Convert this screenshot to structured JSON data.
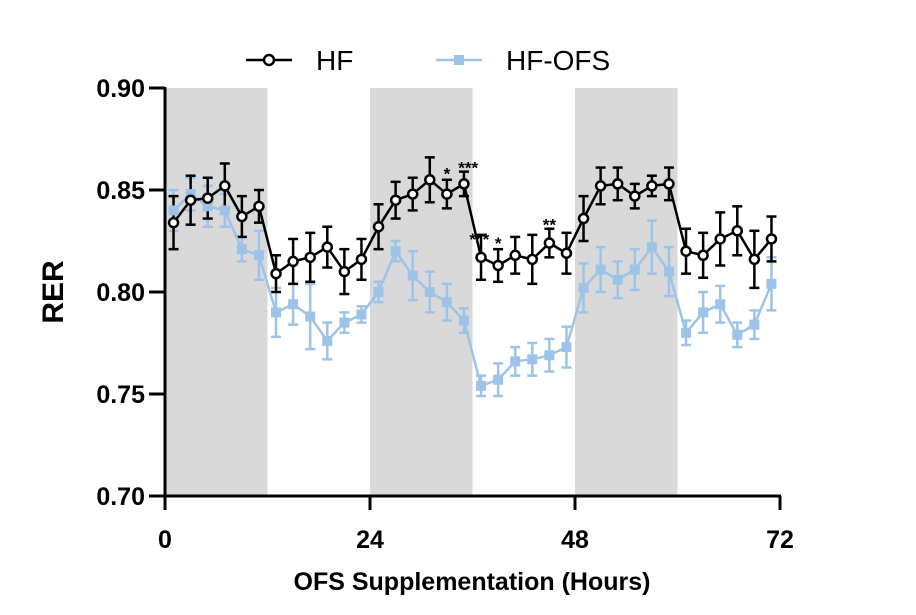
{
  "chart_data": {
    "type": "line",
    "title": "",
    "xlabel": "OFS Supplementation (Hours)",
    "ylabel": "RER",
    "xlim": [
      0,
      72
    ],
    "ylim": [
      0.7,
      0.9
    ],
    "x_ticks": [
      0,
      24,
      48,
      72
    ],
    "y_ticks": [
      0.7,
      0.75,
      0.8,
      0.85,
      0.9
    ],
    "x_tick_labels": [
      "0",
      "24",
      "48",
      "72"
    ],
    "y_tick_labels": [
      "0.70",
      "0.75",
      "0.80",
      "0.85",
      "0.90"
    ],
    "legend_position": "top-center",
    "dark_periods": [
      [
        0,
        12
      ],
      [
        24,
        36
      ],
      [
        48,
        60
      ]
    ],
    "colors": {
      "HF": "#000000",
      "HF-OFS": "#9ec3e8",
      "dark_shading": "#d9d9d9"
    },
    "x": [
      1,
      3,
      5,
      7,
      9,
      11,
      13,
      15,
      17,
      19,
      21,
      23,
      25,
      27,
      29,
      31,
      33,
      35,
      37,
      39,
      41,
      43,
      45,
      47,
      49,
      51,
      53,
      55,
      57,
      59,
      61,
      63,
      65,
      67,
      69,
      71
    ],
    "series": [
      {
        "name": "HF",
        "marker": "open-circle",
        "values": [
          0.834,
          0.845,
          0.846,
          0.852,
          0.837,
          0.842,
          0.809,
          0.815,
          0.817,
          0.822,
          0.81,
          0.816,
          0.832,
          0.845,
          0.848,
          0.855,
          0.848,
          0.853,
          0.817,
          0.813,
          0.818,
          0.816,
          0.824,
          0.819,
          0.836,
          0.852,
          0.853,
          0.847,
          0.852,
          0.853,
          0.82,
          0.818,
          0.826,
          0.83,
          0.816,
          0.826
        ],
        "errors": [
          0.013,
          0.012,
          0.01,
          0.011,
          0.01,
          0.008,
          0.009,
          0.011,
          0.012,
          0.01,
          0.011,
          0.01,
          0.011,
          0.009,
          0.008,
          0.011,
          0.007,
          0.006,
          0.011,
          0.008,
          0.009,
          0.012,
          0.007,
          0.01,
          0.011,
          0.009,
          0.008,
          0.006,
          0.005,
          0.008,
          0.011,
          0.011,
          0.013,
          0.012,
          0.014,
          0.011
        ]
      },
      {
        "name": "HF-OFS",
        "marker": "filled-square",
        "values": [
          0.84,
          0.848,
          0.842,
          0.84,
          0.821,
          0.818,
          0.79,
          0.794,
          0.788,
          0.776,
          0.785,
          0.789,
          0.8,
          0.82,
          0.808,
          0.8,
          0.795,
          0.786,
          0.754,
          0.757,
          0.766,
          0.767,
          0.769,
          0.773,
          0.802,
          0.811,
          0.806,
          0.811,
          0.822,
          0.81,
          0.78,
          0.79,
          0.794,
          0.779,
          0.784,
          0.804
        ],
        "errors": [
          0.01,
          0.008,
          0.01,
          0.008,
          0.006,
          0.012,
          0.012,
          0.01,
          0.016,
          0.009,
          0.005,
          0.004,
          0.005,
          0.005,
          0.012,
          0.01,
          0.009,
          0.006,
          0.005,
          0.008,
          0.007,
          0.008,
          0.008,
          0.01,
          0.012,
          0.011,
          0.009,
          0.01,
          0.013,
          0.012,
          0.006,
          0.01,
          0.009,
          0.006,
          0.007,
          0.013
        ]
      }
    ],
    "annotations": [
      {
        "text": "*",
        "x": 33,
        "y": 0.858
      },
      {
        "text": "***",
        "x": 35.5,
        "y": 0.861
      },
      {
        "text": "***",
        "x": 36.8,
        "y": 0.826
      },
      {
        "text": "*",
        "x": 39,
        "y": 0.824
      },
      {
        "text": "**",
        "x": 45,
        "y": 0.833
      }
    ]
  }
}
